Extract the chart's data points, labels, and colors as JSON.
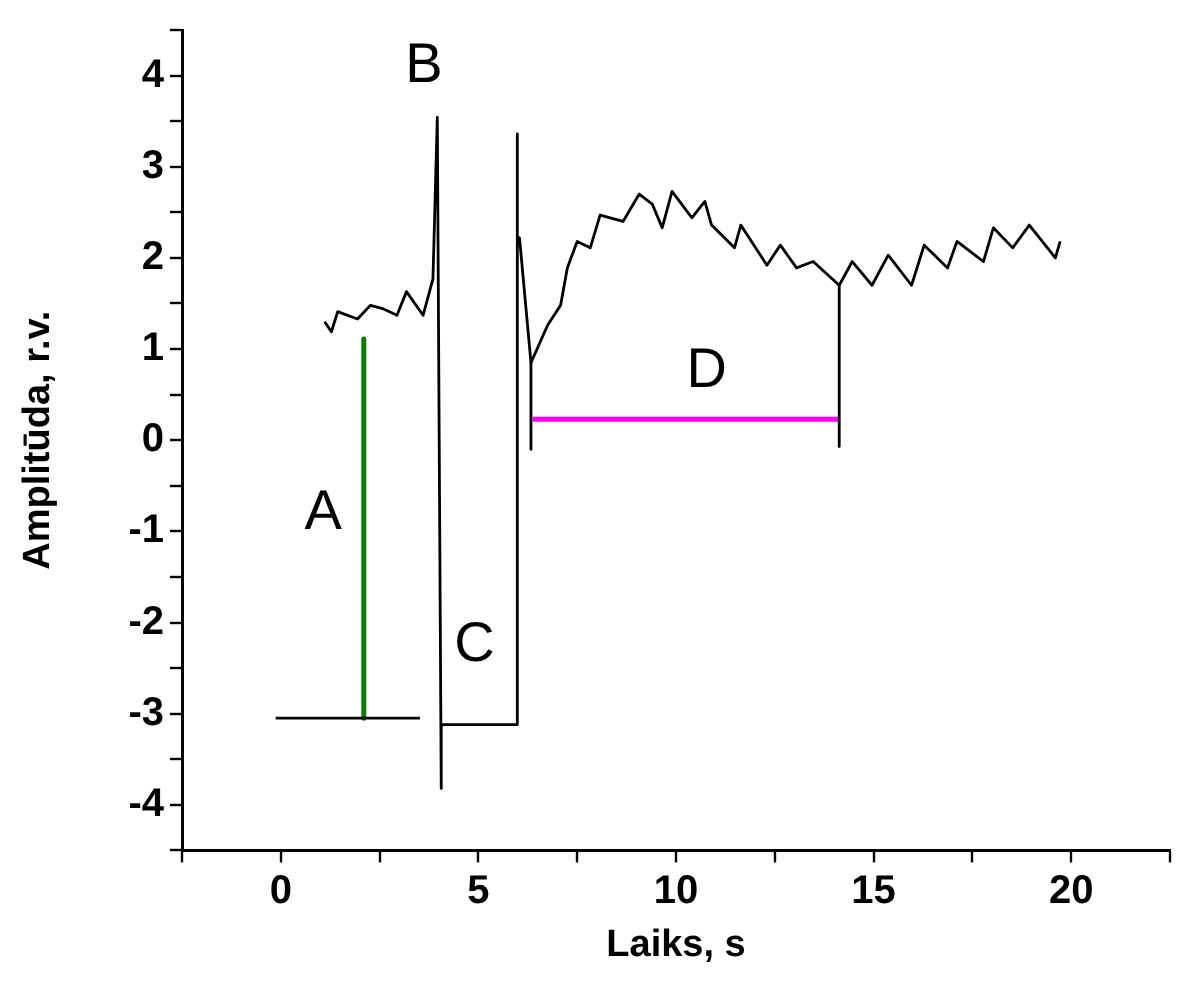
{
  "chart_data": {
    "type": "line",
    "xlabel": "Laiks, s",
    "ylabel": "Amplitūda, r.v.",
    "xlim": [
      -2.5,
      22.5
    ],
    "xticks": [
      {
        "value": -2.5,
        "label": null
      },
      0,
      {
        "value": 2.5,
        "label": null
      },
      5,
      {
        "value": 7.5,
        "label": null
      },
      10,
      {
        "value": 12.5,
        "label": null
      },
      15,
      {
        "value": 17.5,
        "label": null
      },
      20,
      {
        "value": 22.5,
        "label": null
      }
    ],
    "ylim": [
      -4.5,
      4.5
    ],
    "yticks": [
      {
        "value": -4.5,
        "label": null
      },
      -4,
      {
        "value": -3.5,
        "label": null
      },
      -3,
      {
        "value": -2.5,
        "label": null
      },
      -2,
      {
        "value": -1.5,
        "label": null
      },
      -1,
      {
        "value": -0.5,
        "label": null
      },
      0,
      {
        "value": 0.5,
        "label": null
      },
      1,
      {
        "value": 1.5,
        "label": null
      },
      2,
      {
        "value": 2.5,
        "label": null
      },
      3,
      {
        "value": 3.5,
        "label": null
      },
      4,
      {
        "value": 4.5,
        "label": null
      }
    ],
    "grid": false,
    "legend": false,
    "marker": "none",
    "line_style": "solid",
    "series": [
      {
        "color": "#000000",
        "x": [
          1.11,
          1.28,
          1.44,
          1.94,
          2.27,
          2.6,
          2.94,
          3.18,
          3.6,
          3.85,
          3.96,
          4.06,
          4.06,
          5.97,
          5.97,
          6.0,
          6.04,
          6.33,
          6.75,
          7.08,
          7.25,
          7.5,
          7.83,
          8.08,
          8.66,
          9.07,
          9.4,
          9.65,
          9.9,
          10.4,
          10.73,
          10.9,
          11.48,
          11.64,
          12.3,
          12.64,
          13.05,
          13.47,
          14.13,
          14.46,
          14.96,
          15.37,
          15.96,
          16.28,
          16.87,
          17.11,
          17.78,
          18.03,
          18.52,
          18.94,
          19.6,
          19.72
        ],
        "values": [
          1.3,
          1.19,
          1.41,
          1.33,
          1.48,
          1.44,
          1.37,
          1.63,
          1.37,
          1.77,
          3.54,
          -3.82,
          -3.12,
          -3.12,
          3.36,
          2.19,
          2.22,
          0.85,
          1.26,
          1.48,
          1.89,
          2.18,
          2.11,
          2.47,
          2.4,
          2.7,
          2.59,
          2.33,
          2.73,
          2.44,
          2.62,
          2.36,
          2.11,
          2.36,
          1.92,
          2.14,
          1.89,
          1.96,
          1.7,
          1.96,
          1.7,
          2.03,
          1.7,
          2.14,
          1.89,
          2.18,
          1.96,
          2.33,
          2.11,
          2.36,
          2,
          2.18
        ]
      },
      {
        "color": "#000000",
        "x": [
          -0.13,
          3.52,
          5,
          6.33,
          6.33,
          10,
          14.13,
          14.13
        ],
        "values": [
          -3.05,
          -3.05,
          null,
          0.85,
          -0.1,
          null,
          1.7,
          -0.07
        ]
      },
      {
        "color": "#008000",
        "x": [
          2.1,
          2.1
        ],
        "values": [
          1.11,
          -3.05
        ]
      },
      {
        "color": "#ff00ff",
        "x": [
          6.37,
          14.1
        ],
        "values": [
          0.23,
          0.23
        ]
      }
    ],
    "annotations": [
      "A",
      "B",
      "C",
      "D"
    ]
  }
}
